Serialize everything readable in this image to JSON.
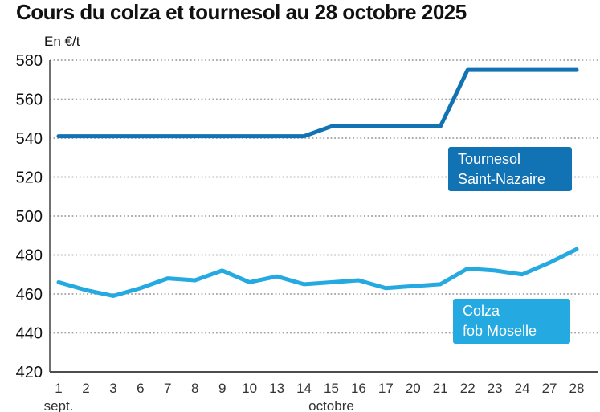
{
  "title": "Cours du colza et tournesol au 28 octobre 2025",
  "unit_label": "En €/t",
  "colors": {
    "tournesol": "#1173b4",
    "colza": "#24a9e1",
    "grid": "#a3a3a3",
    "axis": "#4d4d4d",
    "text": "#111111",
    "tick_text": "#333333",
    "badge_text": "#ffffff"
  },
  "legend": {
    "tournesol": {
      "line1": "Tournesol",
      "line2": "Saint-Nazaire"
    },
    "colza": {
      "line1": "Colza",
      "line2": "fob Moselle"
    }
  },
  "chart_data": {
    "type": "line",
    "title": "Cours du colza et tournesol au 28 octobre 2025",
    "xlabel": "",
    "ylabel": "En €/t",
    "ylim": [
      420,
      580
    ],
    "ytick_step": 20,
    "yticks": [
      420,
      440,
      460,
      480,
      500,
      520,
      540,
      560,
      580
    ],
    "grid": "horizontal-dotted",
    "legend_position": "inline-boxes",
    "categories": [
      "1",
      "2",
      "3",
      "6",
      "7",
      "8",
      "9",
      "10",
      "13",
      "14",
      "15",
      "16",
      "17",
      "20",
      "21",
      "22",
      "23",
      "24",
      "27",
      "28"
    ],
    "month_labels": [
      {
        "label": "sept.",
        "at_index": 0
      },
      {
        "label": "octobre",
        "at_index": 10
      }
    ],
    "series": [
      {
        "name": "Tournesol Saint-Nazaire",
        "color": "#1173b4",
        "values": [
          541,
          541,
          541,
          541,
          541,
          541,
          541,
          541,
          541,
          541,
          546,
          546,
          546,
          546,
          546,
          575,
          575,
          575,
          575,
          575
        ]
      },
      {
        "name": "Colza fob Moselle",
        "color": "#24a9e1",
        "values": [
          466,
          462,
          459,
          463,
          468,
          467,
          472,
          466,
          469,
          465,
          466,
          467,
          463,
          464,
          465,
          473,
          472,
          470,
          476,
          483
        ]
      }
    ]
  }
}
